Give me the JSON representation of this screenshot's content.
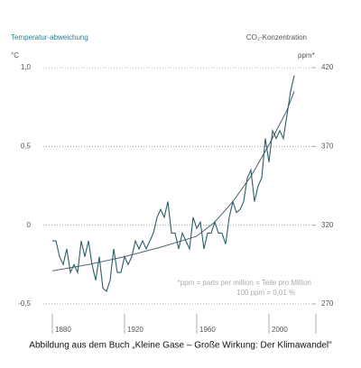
{
  "chart_data": {
    "type": "line",
    "y_label": "Temperatur-abweichung",
    "y_unit": "°C",
    "y2_label": "CO₂-Konzentration",
    "y2_unit": "ppm*",
    "xlim": [
      1875,
      2020
    ],
    "xticks": [
      1880,
      1920,
      1960,
      2000
    ],
    "ylim": [
      -0.5,
      1.0
    ],
    "yticks": [
      {
        "value": 1.0,
        "label": "1,0"
      },
      {
        "value": 0.5,
        "label": "0,5"
      },
      0,
      {
        "value": -0.5,
        "label": "-0,5"
      }
    ],
    "y2lim": [
      270,
      420
    ],
    "y2ticks": [
      420,
      370,
      320,
      270
    ],
    "grid": true,
    "series": [
      {
        "name": "Temperaturabweichung",
        "color": "#2d5e69",
        "x": [
          1880,
          1882,
          1884,
          1886,
          1888,
          1890,
          1892,
          1894,
          1896,
          1898,
          1900,
          1902,
          1904,
          1906,
          1908,
          1910,
          1912,
          1914,
          1916,
          1918,
          1920,
          1922,
          1924,
          1926,
          1928,
          1930,
          1932,
          1934,
          1936,
          1938,
          1940,
          1942,
          1944,
          1946,
          1948,
          1950,
          1952,
          1954,
          1956,
          1958,
          1960,
          1962,
          1964,
          1966,
          1968,
          1970,
          1972,
          1974,
          1976,
          1978,
          1980,
          1982,
          1984,
          1986,
          1988,
          1990,
          1992,
          1994,
          1996,
          1998,
          2000,
          2002,
          2004,
          2006,
          2008,
          2010,
          2012,
          2014
        ],
        "values": [
          -0.1,
          -0.1,
          -0.2,
          -0.25,
          -0.15,
          -0.3,
          -0.25,
          -0.3,
          -0.1,
          -0.2,
          -0.1,
          -0.25,
          -0.35,
          -0.2,
          -0.4,
          -0.42,
          -0.35,
          -0.15,
          -0.3,
          -0.3,
          -0.2,
          -0.25,
          -0.2,
          -0.1,
          -0.15,
          -0.1,
          -0.15,
          -0.1,
          -0.05,
          0.05,
          0.1,
          0.05,
          0.15,
          -0.05,
          -0.05,
          -0.15,
          -0.05,
          -0.1,
          -0.15,
          0.05,
          -0.02,
          0.02,
          -0.15,
          -0.05,
          -0.05,
          0.02,
          -0.05,
          -0.05,
          -0.12,
          0.05,
          0.15,
          0.08,
          0.1,
          0.15,
          0.3,
          0.35,
          0.15,
          0.25,
          0.3,
          0.55,
          0.4,
          0.6,
          0.55,
          0.6,
          0.55,
          0.7,
          0.85,
          0.95
        ]
      },
      {
        "name": "CO₂-Konzentration",
        "color": "#3a5560",
        "axis": "y2",
        "x": [
          1880,
          1900,
          1920,
          1940,
          1960,
          1970,
          1980,
          1990,
          2000,
          2010,
          2014
        ],
        "values": [
          291,
          295,
          300,
          306,
          313,
          322,
          335,
          351,
          371,
          393,
          405
        ]
      }
    ],
    "annotations": [
      "*ppm = parts per million = Teile pro Million",
      "100 ppm = 0,01 %"
    ],
    "caption": "Abbildung aus dem Buch „Kleine Gase – Große Wirkung: Der Klimawandel\""
  }
}
